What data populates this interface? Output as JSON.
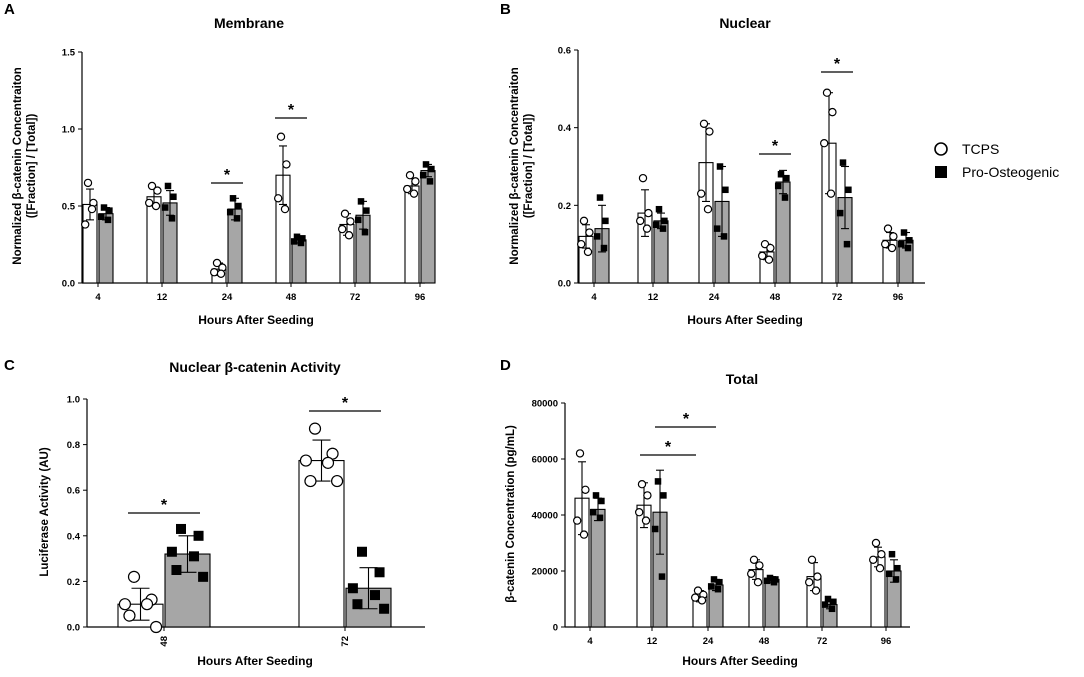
{
  "colors": {
    "tcps_fill": "#ffffff",
    "pro_fill": "#a6a6a6",
    "stroke": "#000000"
  },
  "legend": {
    "tcps": "TCPS",
    "pro": "Pro-Osteogenic"
  },
  "chart_data": [
    {
      "panel": "A",
      "type": "bar",
      "title": "Membrane",
      "xlabel": "Hours After Seeding",
      "ylabel": "Normalized β-catenin Concentraiton",
      "ylabel2": "([Fraction] / [Total])",
      "categories": [
        "4",
        "12",
        "24",
        "48",
        "72",
        "96"
      ],
      "ylim": [
        0,
        1.5
      ],
      "yticks": [
        "0.0",
        "0.5",
        "1.0",
        "1.5"
      ],
      "series": [
        {
          "name": "TCPS",
          "values": [
            0.51,
            0.56,
            0.09,
            0.7,
            0.38,
            0.63
          ],
          "err": [
            0.1,
            0.06,
            0.04,
            0.19,
            0.07,
            0.05
          ],
          "points": [
            [
              0.65,
              0.52,
              0.38,
              0.48
            ],
            [
              0.63,
              0.6,
              0.52,
              0.5
            ],
            [
              0.13,
              0.1,
              0.07,
              0.06
            ],
            [
              0.95,
              0.77,
              0.55,
              0.48
            ],
            [
              0.45,
              0.4,
              0.35,
              0.31
            ],
            [
              0.7,
              0.66,
              0.61,
              0.58
            ]
          ]
        },
        {
          "name": "Pro-Osteogenic",
          "values": [
            0.45,
            0.52,
            0.48,
            0.28,
            0.44,
            0.73
          ],
          "err": [
            0.04,
            0.08,
            0.07,
            0.02,
            0.09,
            0.04
          ],
          "points": [
            [
              0.49,
              0.47,
              0.43,
              0.41
            ],
            [
              0.63,
              0.56,
              0.49,
              0.42
            ],
            [
              0.55,
              0.5,
              0.46,
              0.42
            ],
            [
              0.3,
              0.29,
              0.27,
              0.26
            ],
            [
              0.53,
              0.47,
              0.41,
              0.33
            ],
            [
              0.77,
              0.74,
              0.7,
              0.66
            ]
          ]
        }
      ],
      "significance": [
        {
          "cat": 2,
          "label": "*"
        },
        {
          "cat": 3,
          "label": "*"
        }
      ]
    },
    {
      "panel": "B",
      "type": "bar",
      "title": "Nuclear",
      "xlabel": "Hours After Seeding",
      "ylabel": "Normalized β-catenin Concentraiton",
      "ylabel2": "([Fraction] / [Total])",
      "categories": [
        "4",
        "12",
        "24",
        "48",
        "72",
        "96"
      ],
      "ylim": [
        0,
        0.6
      ],
      "yticks": [
        "0.0",
        "0.2",
        "0.4",
        "0.6"
      ],
      "series": [
        {
          "name": "TCPS",
          "values": [
            0.12,
            0.18,
            0.31,
            0.08,
            0.36,
            0.11
          ],
          "err": [
            0.03,
            0.06,
            0.1,
            0.02,
            0.13,
            0.02
          ],
          "points": [
            [
              0.16,
              0.13,
              0.1,
              0.08
            ],
            [
              0.27,
              0.18,
              0.16,
              0.14
            ],
            [
              0.41,
              0.39,
              0.23,
              0.19
            ],
            [
              0.1,
              0.09,
              0.07,
              0.06
            ],
            [
              0.49,
              0.44,
              0.36,
              0.23
            ],
            [
              0.14,
              0.12,
              0.1,
              0.09
            ]
          ]
        },
        {
          "name": "Pro-Osteogenic",
          "values": [
            0.14,
            0.16,
            0.21,
            0.26,
            0.22,
            0.11
          ],
          "err": [
            0.06,
            0.02,
            0.09,
            0.03,
            0.08,
            0.02
          ],
          "points": [
            [
              0.22,
              0.16,
              0.12,
              0.09
            ],
            [
              0.19,
              0.16,
              0.15,
              0.14
            ],
            [
              0.3,
              0.24,
              0.14,
              0.12
            ],
            [
              0.28,
              0.27,
              0.25,
              0.22
            ],
            [
              0.31,
              0.24,
              0.18,
              0.1
            ],
            [
              0.13,
              0.11,
              0.1,
              0.09
            ]
          ]
        }
      ],
      "significance": [
        {
          "cat": 3,
          "label": "*"
        },
        {
          "cat": 4,
          "label": "*"
        }
      ]
    },
    {
      "panel": "C",
      "type": "bar",
      "title": "Nuclear β-catenin Activity",
      "xlabel": "Hours After Seeding",
      "ylabel": "Luciferase Activity (AU)",
      "categories": [
        "48",
        "72"
      ],
      "ylim": [
        0,
        1.0
      ],
      "yticks": [
        "0.0",
        "0.2",
        "0.4",
        "0.6",
        "0.8",
        "1.0"
      ],
      "series": [
        {
          "name": "TCPS",
          "values": [
            0.1,
            0.73
          ],
          "err": [
            0.07,
            0.09
          ],
          "points": [
            [
              0.22,
              0.12,
              0.1,
              0.1,
              0.05,
              0.0
            ],
            [
              0.87,
              0.76,
              0.73,
              0.72,
              0.64,
              0.64
            ]
          ]
        },
        {
          "name": "Pro-Osteogenic",
          "values": [
            0.32,
            0.17
          ],
          "err": [
            0.08,
            0.09
          ],
          "points": [
            [
              0.43,
              0.4,
              0.33,
              0.31,
              0.25,
              0.22
            ],
            [
              0.33,
              0.24,
              0.17,
              0.14,
              0.1,
              0.08
            ]
          ]
        }
      ],
      "significance": [
        {
          "cat": 0,
          "label": "*"
        },
        {
          "cat": 1,
          "label": "*"
        }
      ]
    },
    {
      "panel": "D",
      "type": "bar",
      "title": "Total",
      "xlabel": "Hours After Seeding",
      "ylabel": "β-catenin Concentration (pg/mL)",
      "categories": [
        "4",
        "12",
        "24",
        "48",
        "72",
        "96"
      ],
      "ylim": [
        0,
        80000
      ],
      "yticks": [
        "0",
        "20000",
        "40000",
        "60000",
        "80000"
      ],
      "series": [
        {
          "name": "TCPS",
          "values": [
            46000,
            43500,
            11000,
            20500,
            18000,
            25000
          ],
          "err": [
            13000,
            8000,
            2000,
            3500,
            5000,
            3500
          ],
          "points": [
            [
              62000,
              49000,
              38000,
              33000
            ],
            [
              51000,
              47000,
              41000,
              38000
            ],
            [
              13000,
              11500,
              10500,
              9500
            ],
            [
              24000,
              22000,
              19000,
              16000
            ],
            [
              24000,
              18000,
              16000,
              13000
            ],
            [
              30000,
              26000,
              24000,
              21000
            ]
          ]
        },
        {
          "name": "Pro-Osteogenic",
          "values": [
            42000,
            41000,
            15000,
            17000,
            8000,
            20000
          ],
          "err": [
            4000,
            15000,
            2000,
            1000,
            1500,
            4000
          ],
          "points": [
            [
              47000,
              45000,
              41000,
              39000
            ],
            [
              52000,
              47000,
              35000,
              18000
            ],
            [
              17000,
              16000,
              14500,
              13500
            ],
            [
              17500,
              17000,
              16500,
              16000
            ],
            [
              10000,
              9000,
              8000,
              6500
            ],
            [
              26000,
              21000,
              19000,
              17000
            ]
          ]
        }
      ],
      "significance": [
        {
          "from": 1,
          "to": 2,
          "label": "*"
        },
        {
          "from": 1,
          "to": 2,
          "label": "*"
        }
      ]
    }
  ]
}
